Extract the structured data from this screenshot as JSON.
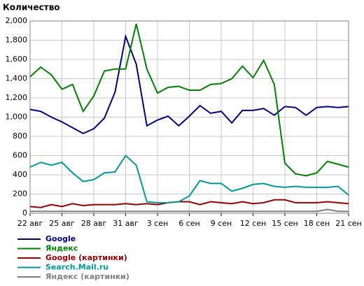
{
  "chart_data": {
    "type": "line",
    "title": "Количество",
    "categories": [
      "22 авг",
      null,
      null,
      "25 авг",
      null,
      null,
      "28 авг",
      null,
      null,
      "31 авг",
      null,
      null,
      "3 сен",
      null,
      null,
      "6 сен",
      null,
      null,
      "9 сен",
      null,
      null,
      "12 сен",
      null,
      null,
      "15 сен",
      null,
      null,
      "18 сен",
      null,
      null,
      "21 сен"
    ],
    "series": [
      {
        "name": "Google",
        "color": "#000080",
        "values": [
          1080,
          1060,
          1000,
          950,
          890,
          830,
          880,
          990,
          1260,
          1840,
          1550,
          910,
          970,
          1010,
          910,
          1010,
          1120,
          1040,
          1060,
          940,
          1070,
          1070,
          1090,
          1020,
          1110,
          1100,
          1020,
          1100,
          1110,
          1100,
          1110
        ]
      },
      {
        "name": "Яндекс",
        "color": "#008000",
        "values": [
          1420,
          1520,
          1440,
          1290,
          1340,
          1060,
          1220,
          1480,
          1500,
          1500,
          1970,
          1500,
          1250,
          1310,
          1320,
          1280,
          1280,
          1340,
          1350,
          1400,
          1530,
          1410,
          1590,
          1340,
          520,
          410,
          390,
          420,
          540,
          510,
          480
        ]
      },
      {
        "name": "Google (картинки)",
        "color": "#990000",
        "values": [
          70,
          60,
          90,
          70,
          100,
          80,
          90,
          90,
          90,
          100,
          90,
          100,
          90,
          110,
          120,
          120,
          90,
          120,
          110,
          100,
          120,
          100,
          110,
          140,
          140,
          110,
          110,
          110,
          120,
          110,
          100
        ]
      },
      {
        "name": "Search.Mail.ru",
        "color": "#009999",
        "values": [
          480,
          530,
          500,
          530,
          420,
          330,
          350,
          420,
          430,
          600,
          500,
          120,
          110,
          110,
          120,
          180,
          340,
          310,
          310,
          230,
          260,
          300,
          310,
          280,
          270,
          280,
          270,
          270,
          270,
          280,
          190
        ]
      },
      {
        "name": "Яндекс (картинки)",
        "color": "#808080",
        "values": [
          20,
          20,
          20,
          20,
          20,
          20,
          20,
          20,
          20,
          20,
          20,
          20,
          20,
          20,
          20,
          20,
          20,
          20,
          20,
          20,
          20,
          20,
          20,
          20,
          20,
          20,
          20,
          20,
          40,
          20,
          20
        ]
      }
    ],
    "ylim": [
      0,
      2000
    ],
    "yticks": [
      0,
      200,
      400,
      600,
      800,
      {
        "value": 1000,
        "label": "1,000"
      },
      {
        "value": 1200,
        "label": "1,200"
      },
      {
        "value": 1400,
        "label": "1,400"
      },
      {
        "value": 1600,
        "label": "1,600"
      },
      {
        "value": 1800,
        "label": "1,800"
      },
      {
        "value": 2000,
        "label": "2,000"
      }
    ],
    "grid": true
  }
}
